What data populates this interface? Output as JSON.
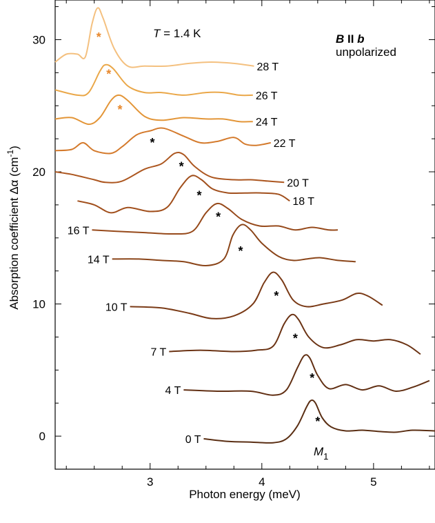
{
  "chart_data": {
    "type": "line",
    "xlabel": "Photon energy (meV)",
    "ylabel": "Absorption coefficient Δα (cm⁻¹)",
    "xlim": [
      2.15,
      5.55
    ],
    "ylim": [
      -2.5,
      33.0
    ],
    "x_ticks": [
      3,
      4,
      5
    ],
    "y_ticks": [
      0,
      10,
      20,
      30
    ],
    "grid": false,
    "legend": "none",
    "annotations": {
      "temperature": "T = 1.4 K",
      "field_orientation": "B II b",
      "polarization": "unpolarized",
      "peak_label": "M1"
    },
    "series": [
      {
        "name": "0 T",
        "color": "#5a2e13",
        "star_color": "#000000",
        "star": {
          "x": 4.5,
          "y": 1.3
        },
        "points": [
          [
            3.48,
            -0.2
          ],
          [
            3.7,
            -0.4
          ],
          [
            3.9,
            -0.45
          ],
          [
            4.1,
            -0.5
          ],
          [
            4.22,
            -0.2
          ],
          [
            4.32,
            0.8
          ],
          [
            4.4,
            2.2
          ],
          [
            4.44,
            2.7
          ],
          [
            4.48,
            2.5
          ],
          [
            4.54,
            1.4
          ],
          [
            4.62,
            0.7
          ],
          [
            4.75,
            0.4
          ],
          [
            4.9,
            0.45
          ],
          [
            5.05,
            0.35
          ],
          [
            5.2,
            0.3
          ],
          [
            5.35,
            0.45
          ],
          [
            5.55,
            0.4
          ]
        ]
      },
      {
        "name": "4 T",
        "color": "#612f13",
        "star_color": "#000000",
        "star": {
          "x": 4.45,
          "y": 4.6
        },
        "points": [
          [
            3.3,
            3.5
          ],
          [
            3.6,
            3.4
          ],
          [
            3.9,
            3.4
          ],
          [
            4.1,
            3.1
          ],
          [
            4.22,
            3.5
          ],
          [
            4.32,
            5.2
          ],
          [
            4.38,
            6.1
          ],
          [
            4.43,
            5.9
          ],
          [
            4.5,
            4.6
          ],
          [
            4.6,
            3.6
          ],
          [
            4.75,
            3.9
          ],
          [
            4.9,
            3.5
          ],
          [
            5.05,
            3.8
          ],
          [
            5.2,
            3.4
          ],
          [
            5.35,
            3.7
          ],
          [
            5.5,
            4.2
          ]
        ]
      },
      {
        "name": "7 T",
        "color": "#6b3314",
        "star_color": "#000000",
        "star": {
          "x": 4.3,
          "y": 7.6
        },
        "points": [
          [
            3.17,
            6.4
          ],
          [
            3.45,
            6.5
          ],
          [
            3.75,
            6.4
          ],
          [
            3.95,
            6.5
          ],
          [
            4.1,
            6.8
          ],
          [
            4.2,
            8.5
          ],
          [
            4.27,
            9.2
          ],
          [
            4.33,
            8.8
          ],
          [
            4.42,
            7.5
          ],
          [
            4.55,
            6.7
          ],
          [
            4.7,
            6.9
          ],
          [
            4.85,
            7.3
          ],
          [
            5.0,
            7.2
          ],
          [
            5.15,
            7.3
          ],
          [
            5.3,
            6.9
          ],
          [
            5.42,
            6.2
          ]
        ]
      },
      {
        "name": "10 T",
        "color": "#7a3a16",
        "star_color": "#000000",
        "star": {
          "x": 4.13,
          "y": 10.8
        },
        "points": [
          [
            2.82,
            9.8
          ],
          [
            3.1,
            9.7
          ],
          [
            3.35,
            9.3
          ],
          [
            3.55,
            8.9
          ],
          [
            3.75,
            9.1
          ],
          [
            3.92,
            10.0
          ],
          [
            4.02,
            11.6
          ],
          [
            4.1,
            12.4
          ],
          [
            4.18,
            11.8
          ],
          [
            4.28,
            10.3
          ],
          [
            4.4,
            9.8
          ],
          [
            4.55,
            10.0
          ],
          [
            4.72,
            10.3
          ],
          [
            4.85,
            10.8
          ],
          [
            4.95,
            10.6
          ],
          [
            5.08,
            9.9
          ]
        ]
      },
      {
        "name": "14 T",
        "color": "#8a4418",
        "star_color": "#000000",
        "star": {
          "x": 3.81,
          "y": 14.2
        },
        "points": [
          [
            2.66,
            13.4
          ],
          [
            2.9,
            13.4
          ],
          [
            3.1,
            13.3
          ],
          [
            3.3,
            13.2
          ],
          [
            3.5,
            12.9
          ],
          [
            3.66,
            13.4
          ],
          [
            3.74,
            15.2
          ],
          [
            3.82,
            16.0
          ],
          [
            3.9,
            15.6
          ],
          [
            4.0,
            14.6
          ],
          [
            4.15,
            13.6
          ],
          [
            4.28,
            13.3
          ],
          [
            4.4,
            13.4
          ],
          [
            4.52,
            13.5
          ],
          [
            4.68,
            13.3
          ],
          [
            4.84,
            13.2
          ]
        ]
      },
      {
        "name": "16 T",
        "color": "#96491a",
        "star_color": "#000000",
        "star": {
          "x": 3.61,
          "y": 16.8
        },
        "points": [
          [
            2.48,
            15.6
          ],
          [
            2.7,
            15.5
          ],
          [
            2.95,
            15.4
          ],
          [
            3.2,
            15.3
          ],
          [
            3.38,
            15.5
          ],
          [
            3.5,
            16.9
          ],
          [
            3.6,
            17.6
          ],
          [
            3.7,
            17.2
          ],
          [
            3.82,
            16.4
          ],
          [
            3.98,
            15.9
          ],
          [
            4.15,
            15.9
          ],
          [
            4.3,
            15.6
          ],
          [
            4.45,
            15.8
          ],
          [
            4.6,
            15.6
          ],
          [
            4.68,
            15.6
          ]
        ]
      },
      {
        "name": "18 T",
        "color": "#a14f1c",
        "star_color": "#000000",
        "star": {
          "x": 3.44,
          "y": 18.4
        },
        "points": [
          [
            2.35,
            17.8
          ],
          [
            2.5,
            17.5
          ],
          [
            2.65,
            16.9
          ],
          [
            2.8,
            17.3
          ],
          [
            3.0,
            17.0
          ],
          [
            3.15,
            17.3
          ],
          [
            3.27,
            18.8
          ],
          [
            3.37,
            19.7
          ],
          [
            3.46,
            19.4
          ],
          [
            3.56,
            18.7
          ],
          [
            3.7,
            18.4
          ],
          [
            3.85,
            18.4
          ],
          [
            4.0,
            18.4
          ],
          [
            4.15,
            18.3
          ],
          [
            4.25,
            17.8
          ]
        ]
      },
      {
        "name": "20 T",
        "color": "#ac561f",
        "star_color": "#000000",
        "star": {
          "x": 3.28,
          "y": 20.6
        },
        "points": [
          [
            2.15,
            20.0
          ],
          [
            2.3,
            19.8
          ],
          [
            2.5,
            19.4
          ],
          [
            2.6,
            19.2
          ],
          [
            2.75,
            19.3
          ],
          [
            2.95,
            20.2
          ],
          [
            3.1,
            20.6
          ],
          [
            3.22,
            21.4
          ],
          [
            3.3,
            21.3
          ],
          [
            3.4,
            20.4
          ],
          [
            3.55,
            19.6
          ],
          [
            3.75,
            19.4
          ],
          [
            3.9,
            19.4
          ],
          [
            4.05,
            19.3
          ],
          [
            4.2,
            19.2
          ]
        ]
      },
      {
        "name": "22 T",
        "color": "#d47a2c",
        "star_color": "#000000",
        "star": {
          "x": 3.02,
          "y": 22.4
        },
        "points": [
          [
            2.15,
            21.6
          ],
          [
            2.3,
            21.7
          ],
          [
            2.4,
            22.2
          ],
          [
            2.5,
            21.6
          ],
          [
            2.65,
            21.4
          ],
          [
            2.75,
            21.9
          ],
          [
            2.88,
            22.8
          ],
          [
            3.0,
            23.1
          ],
          [
            3.12,
            23.3
          ],
          [
            3.3,
            22.7
          ],
          [
            3.45,
            22.2
          ],
          [
            3.6,
            22.3
          ],
          [
            3.75,
            22.6
          ],
          [
            3.85,
            22.1
          ],
          [
            3.95,
            22.0
          ],
          [
            4.08,
            22.2
          ]
        ]
      },
      {
        "name": "24 T",
        "color": "#e39537",
        "star_color": "#e8892e",
        "star": {
          "x": 2.73,
          "y": 24.9
        },
        "points": [
          [
            2.15,
            24.0
          ],
          [
            2.3,
            24.1
          ],
          [
            2.45,
            23.6
          ],
          [
            2.55,
            24.1
          ],
          [
            2.65,
            25.4
          ],
          [
            2.72,
            25.8
          ],
          [
            2.8,
            25.4
          ],
          [
            2.95,
            24.2
          ],
          [
            3.1,
            23.9
          ],
          [
            3.3,
            24.1
          ],
          [
            3.5,
            24.0
          ],
          [
            3.65,
            24.0
          ],
          [
            3.8,
            23.8
          ],
          [
            3.92,
            23.8
          ]
        ]
      },
      {
        "name": "26 T",
        "color": "#eaa748",
        "star_color": "#e8892e",
        "star": {
          "x": 2.63,
          "y": 27.6
        },
        "points": [
          [
            2.15,
            26.2
          ],
          [
            2.35,
            25.8
          ],
          [
            2.45,
            26.0
          ],
          [
            2.55,
            27.6
          ],
          [
            2.6,
            28.1
          ],
          [
            2.67,
            27.8
          ],
          [
            2.8,
            26.5
          ],
          [
            2.95,
            26.0
          ],
          [
            3.1,
            26.0
          ],
          [
            3.3,
            25.8
          ],
          [
            3.5,
            26.0
          ],
          [
            3.65,
            26.0
          ],
          [
            3.8,
            25.8
          ],
          [
            3.92,
            25.8
          ]
        ]
      },
      {
        "name": "28 T",
        "color": "#f4c07f",
        "star_color": "#e8892e",
        "star": {
          "x": 2.54,
          "y": 30.4
        },
        "points": [
          [
            2.15,
            28.3
          ],
          [
            2.25,
            28.9
          ],
          [
            2.35,
            28.9
          ],
          [
            2.42,
            28.7
          ],
          [
            2.48,
            31.2
          ],
          [
            2.53,
            32.4
          ],
          [
            2.58,
            31.6
          ],
          [
            2.68,
            29.3
          ],
          [
            2.8,
            28.0
          ],
          [
            2.95,
            28.0
          ],
          [
            3.15,
            28.0
          ],
          [
            3.35,
            28.2
          ],
          [
            3.55,
            28.3
          ],
          [
            3.75,
            28.2
          ],
          [
            3.93,
            28.0
          ]
        ]
      }
    ]
  }
}
